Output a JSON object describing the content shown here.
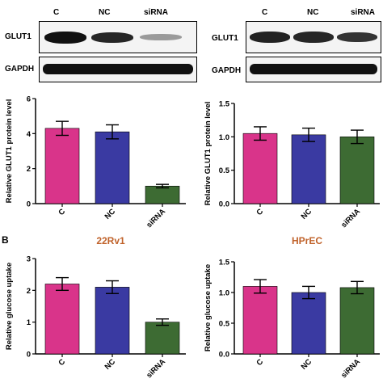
{
  "western_blot": {
    "left": {
      "lanes": [
        "C",
        "NC",
        "siRNA"
      ],
      "rows": [
        "GLUT1",
        "GAPDH"
      ]
    },
    "right": {
      "lanes": [
        "C",
        "NC",
        "siRNA"
      ],
      "rows": [
        "GLUT1",
        "GAPDH"
      ]
    }
  },
  "panel_b_letter": "B",
  "colors": {
    "C": "#d9348a",
    "NC": "#3a3aa2",
    "siRNA": "#3d6b33",
    "title": "#c0622a"
  },
  "chart_data": [
    {
      "type": "bar",
      "title": "",
      "categories": [
        "C",
        "NC",
        "siRNA"
      ],
      "values": [
        4.3,
        4.1,
        1.0
      ],
      "errors": [
        0.4,
        0.4,
        0.1
      ],
      "ylabel": "Relative GLUT1 protein level",
      "ylim": [
        0,
        6
      ],
      "yticks": [
        0,
        2,
        4,
        6
      ]
    },
    {
      "type": "bar",
      "title": "",
      "categories": [
        "C",
        "NC",
        "siRNA"
      ],
      "values": [
        1.05,
        1.03,
        1.0
      ],
      "errors": [
        0.1,
        0.1,
        0.1
      ],
      "ylabel": "Relative GLUT1 protein level",
      "ylim": [
        0,
        1.5
      ],
      "yticks": [
        0.0,
        0.5,
        1.0,
        1.5
      ]
    },
    {
      "type": "bar",
      "title": "22Rv1",
      "categories": [
        "C",
        "NC",
        "siRNA"
      ],
      "values": [
        2.2,
        2.1,
        1.0
      ],
      "errors": [
        0.2,
        0.2,
        0.1
      ],
      "ylabel": "Relative glucose uptake",
      "ylim": [
        0,
        3
      ],
      "yticks": [
        0,
        1,
        2,
        3
      ]
    },
    {
      "type": "bar",
      "title": "HPrEC",
      "categories": [
        "C",
        "NC",
        "siRNA"
      ],
      "values": [
        1.1,
        1.0,
        1.08
      ],
      "errors": [
        0.11,
        0.1,
        0.1
      ],
      "ylabel": "Relative glucose uptake",
      "ylim": [
        0,
        1.5
      ],
      "yticks": [
        0.0,
        0.5,
        1.0,
        1.5
      ]
    }
  ]
}
